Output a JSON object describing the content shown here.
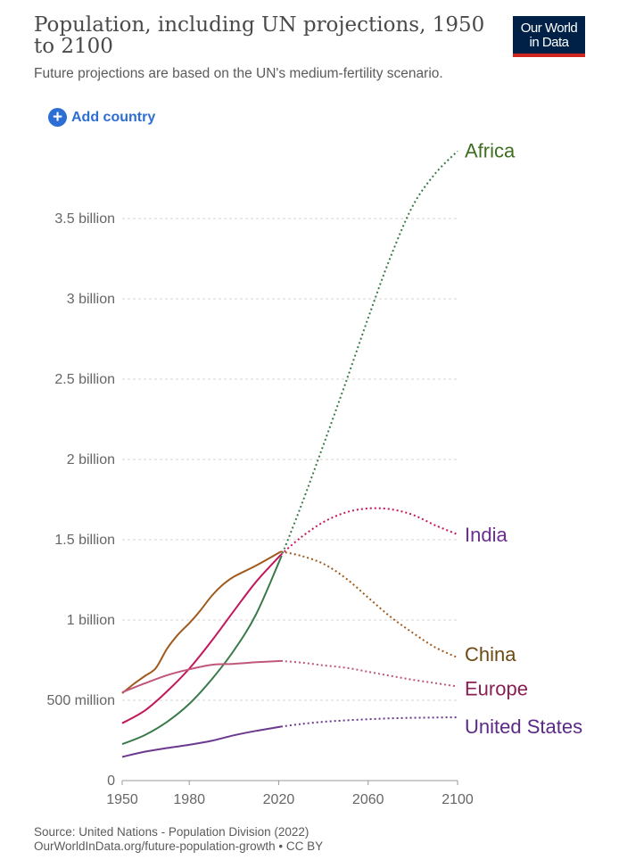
{
  "header": {
    "title": "Population, including UN projections, 1950 to 2100",
    "subtitle": "Future projections are based on the UN's medium-fertility scenario.",
    "logo_line1": "Our World",
    "logo_line2": "in Data"
  },
  "controls": {
    "add_country_label": "Add country",
    "add_icon": "plus-circle-icon"
  },
  "footer": {
    "source": "Source: United Nations - Population Division (2022)",
    "link": "OurWorldInData.org/future-population-growth • CC BY"
  },
  "chart_data": {
    "type": "line",
    "title": "Population, including UN projections, 1950 to 2100",
    "subtitle": "Future projections are based on the UN's medium-fertility scenario.",
    "xlabel": "",
    "ylabel": "",
    "xlim": [
      1950,
      2100
    ],
    "ylim": [
      0,
      3900000000
    ],
    "x_ticks": [
      {
        "value": 1950,
        "label": "1950"
      },
      {
        "value": 1980,
        "label": "1980"
      },
      {
        "value": 2020,
        "label": "2020"
      },
      {
        "value": 2060,
        "label": "2060"
      },
      {
        "value": 2100,
        "label": "2100"
      }
    ],
    "y_ticks": [
      {
        "value": 0,
        "label": "0"
      },
      {
        "value": 500000000,
        "label": "500 million"
      },
      {
        "value": 1000000000,
        "label": "1 billion"
      },
      {
        "value": 1500000000,
        "label": "1.5 billion"
      },
      {
        "value": 2000000000,
        "label": "2 billion"
      },
      {
        "value": 2500000000,
        "label": "2.5 billion"
      },
      {
        "value": 3000000000,
        "label": "3 billion"
      },
      {
        "value": 3500000000,
        "label": "3.5 billion"
      }
    ],
    "grid": true,
    "legend": "inline labels at line ends",
    "projection_start": 2021,
    "series": [
      {
        "name": "Africa",
        "color": "#3a7a4a",
        "label_color": "#3e6f1f",
        "points": [
          [
            1950,
            227000000
          ],
          [
            1960,
            283000000
          ],
          [
            1970,
            365000000
          ],
          [
            1980,
            478000000
          ],
          [
            1990,
            630000000
          ],
          [
            2000,
            811000000
          ],
          [
            2010,
            1039000000
          ],
          [
            2021,
            1390000000
          ],
          [
            2030,
            1710000000
          ],
          [
            2040,
            2090000000
          ],
          [
            2050,
            2480000000
          ],
          [
            2060,
            2880000000
          ],
          [
            2070,
            3260000000
          ],
          [
            2080,
            3580000000
          ],
          [
            2090,
            3780000000
          ],
          [
            2100,
            3920000000
          ]
        ]
      },
      {
        "name": "India",
        "color": "#c2185b",
        "label_color": "#6b2d91",
        "points": [
          [
            1950,
            357000000
          ],
          [
            1960,
            435000000
          ],
          [
            1970,
            555000000
          ],
          [
            1980,
            697000000
          ],
          [
            1990,
            870000000
          ],
          [
            2000,
            1057000000
          ],
          [
            2010,
            1240000000
          ],
          [
            2021,
            1407000000
          ],
          [
            2030,
            1515000000
          ],
          [
            2040,
            1610000000
          ],
          [
            2050,
            1670000000
          ],
          [
            2060,
            1695000000
          ],
          [
            2070,
            1690000000
          ],
          [
            2080,
            1655000000
          ],
          [
            2090,
            1590000000
          ],
          [
            2100,
            1533000000
          ]
        ]
      },
      {
        "name": "China",
        "color": "#a05a1e",
        "label_color": "#6e4a12",
        "points": [
          [
            1950,
            544000000
          ],
          [
            1955,
            600000000
          ],
          [
            1960,
            650000000
          ],
          [
            1965,
            700000000
          ],
          [
            1970,
            820000000
          ],
          [
            1975,
            910000000
          ],
          [
            1980,
            980000000
          ],
          [
            1985,
            1060000000
          ],
          [
            1990,
            1150000000
          ],
          [
            1995,
            1220000000
          ],
          [
            2000,
            1270000000
          ],
          [
            2010,
            1340000000
          ],
          [
            2021,
            1426000000
          ],
          [
            2030,
            1400000000
          ],
          [
            2040,
            1350000000
          ],
          [
            2050,
            1260000000
          ],
          [
            2060,
            1140000000
          ],
          [
            2070,
            1020000000
          ],
          [
            2080,
            920000000
          ],
          [
            2090,
            830000000
          ],
          [
            2100,
            766000000
          ]
        ]
      },
      {
        "name": "Europe",
        "color": "#c0577a",
        "label_color": "#8a1f54",
        "points": [
          [
            1950,
            550000000
          ],
          [
            1960,
            605000000
          ],
          [
            1970,
            656000000
          ],
          [
            1980,
            693000000
          ],
          [
            1990,
            721000000
          ],
          [
            2000,
            727000000
          ],
          [
            2010,
            737000000
          ],
          [
            2021,
            745000000
          ],
          [
            2030,
            735000000
          ],
          [
            2040,
            718000000
          ],
          [
            2050,
            703000000
          ],
          [
            2060,
            678000000
          ],
          [
            2070,
            652000000
          ],
          [
            2080,
            628000000
          ],
          [
            2090,
            607000000
          ],
          [
            2100,
            586000000
          ]
        ]
      },
      {
        "name": "United States",
        "color": "#6b3a8e",
        "label_color": "#5b2a86",
        "points": [
          [
            1950,
            148000000
          ],
          [
            1960,
            180000000
          ],
          [
            1970,
            203000000
          ],
          [
            1980,
            223000000
          ],
          [
            1990,
            248000000
          ],
          [
            2000,
            282000000
          ],
          [
            2010,
            310000000
          ],
          [
            2021,
            336000000
          ],
          [
            2030,
            352000000
          ],
          [
            2040,
            366000000
          ],
          [
            2050,
            375000000
          ],
          [
            2060,
            382000000
          ],
          [
            2070,
            388000000
          ],
          [
            2080,
            391000000
          ],
          [
            2090,
            393000000
          ],
          [
            2100,
            394000000
          ]
        ]
      }
    ]
  }
}
